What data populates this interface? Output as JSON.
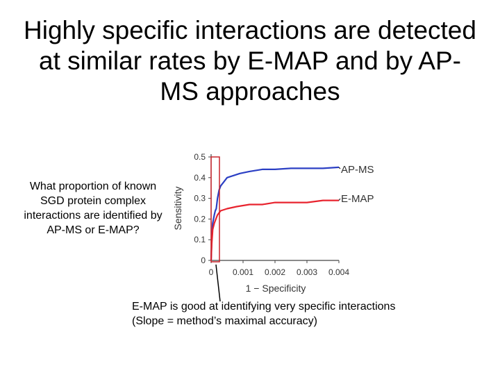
{
  "slide": {
    "title_lines": [
      "Highly specific interactions are detected",
      "at similar rates by E-MAP and by AP-",
      "MS approaches"
    ],
    "question": "What proportion of known SGD protein complex interactions are identified by AP-MS or E-MAP?",
    "caption_lines": [
      "E-MAP is good at identifying very specific interactions",
      "(Slope = method’s maximal accuracy)"
    ]
  },
  "chart_data": {
    "type": "line",
    "title": "",
    "xlabel": "1 − Specificity",
    "ylabel": "Sensitivity",
    "xlim": [
      0,
      0.004
    ],
    "ylim": [
      0,
      0.5
    ],
    "x_ticks": [
      0,
      0.001,
      0.002,
      0.003,
      0.004
    ],
    "x_tick_labels": [
      "0",
      "0.001",
      "0.002",
      "0.003",
      "0.004"
    ],
    "y_ticks": [
      0,
      0.1,
      0.2,
      0.3,
      0.4,
      0.5
    ],
    "y_tick_labels": [
      "0",
      "0.1",
      "0.2",
      "0.3",
      "0.4",
      "0.5"
    ],
    "grid": false,
    "series": [
      {
        "name": "AP-MS",
        "color": "#2b3fc4",
        "x": [
          0,
          2e-05,
          5e-05,
          0.0001,
          0.00013,
          0.00016,
          0.0002,
          0.00025,
          0.0003,
          0.0004,
          0.0005,
          0.0007,
          0.0009,
          0.0012,
          0.0016,
          0.002,
          0.0025,
          0.003,
          0.0035,
          0.004
        ],
        "y": [
          0,
          0.1,
          0.18,
          0.22,
          0.24,
          0.25,
          0.3,
          0.34,
          0.36,
          0.38,
          0.4,
          0.41,
          0.42,
          0.43,
          0.44,
          0.44,
          0.445,
          0.445,
          0.445,
          0.45
        ]
      },
      {
        "name": "E-MAP",
        "color": "#e8232e",
        "x": [
          0,
          2e-05,
          5e-05,
          0.0001,
          0.00015,
          0.0002,
          0.0003,
          0.0005,
          0.0008,
          0.0012,
          0.0016,
          0.002,
          0.0025,
          0.003,
          0.0035,
          0.004
        ],
        "y": [
          0,
          0.08,
          0.15,
          0.18,
          0.2,
          0.22,
          0.24,
          0.25,
          0.26,
          0.27,
          0.27,
          0.28,
          0.28,
          0.28,
          0.29,
          0.29
        ]
      }
    ],
    "annotations": [
      {
        "type": "highlight-box",
        "x_range": [
          0,
          7e-05
        ],
        "y_range": [
          0,
          0.5
        ],
        "color": "#c8232a"
      }
    ],
    "callout_color": "#000000"
  }
}
